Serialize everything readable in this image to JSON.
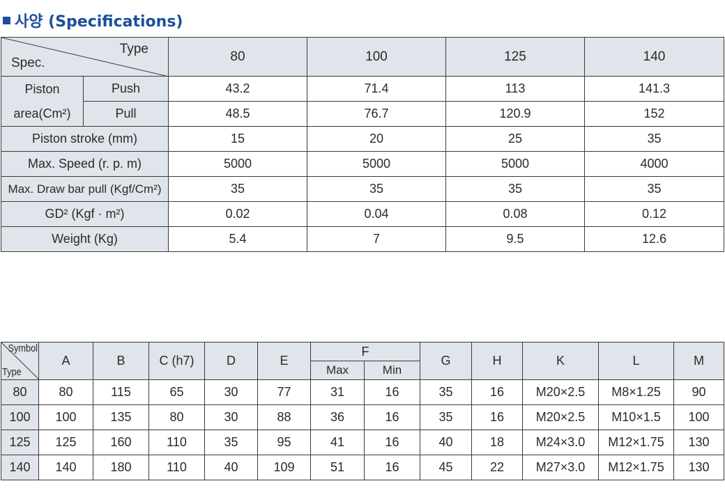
{
  "title": "사양 (Specifications)",
  "spec_table": {
    "corner": {
      "type": "Type",
      "spec": "Spec."
    },
    "types": [
      "80",
      "100",
      "125",
      "140"
    ],
    "piston_area": {
      "label_top": "Piston",
      "label_bottom": "area(Cm²)",
      "push": {
        "label": "Push",
        "values": [
          "43.2",
          "71.4",
          "113",
          "141.3"
        ]
      },
      "pull": {
        "label": "Pull",
        "values": [
          "48.5",
          "76.7",
          "120.9",
          "152"
        ]
      }
    },
    "rows": [
      {
        "label": "Piston stroke (mm)",
        "values": [
          "15",
          "20",
          "25",
          "35"
        ]
      },
      {
        "label": "Max. Speed (r. p. m)",
        "values": [
          "5000",
          "5000",
          "5000",
          "4000"
        ]
      },
      {
        "label": "Max. Draw bar pull (Kgf/Cm²)",
        "values": [
          "35",
          "35",
          "35",
          "35"
        ]
      },
      {
        "label": "GD² (Kgf · m²)",
        "values": [
          "0.02",
          "0.04",
          "0.08",
          "0.12"
        ]
      },
      {
        "label": "Weight (Kg)",
        "values": [
          "5.4",
          "7",
          "9.5",
          "12.6"
        ]
      }
    ]
  },
  "dim_table": {
    "corner": {
      "symbol": "Symbol",
      "type": "Type"
    },
    "headers": {
      "A": "A",
      "B": "B",
      "C": "C (h7)",
      "D": "D",
      "E": "E",
      "F": "F",
      "F_max": "Max",
      "F_min": "Min",
      "G": "G",
      "H": "H",
      "K": "K",
      "L": "L",
      "M": "M"
    },
    "rows": [
      [
        "80",
        "80",
        "115",
        "65",
        "30",
        "77",
        "31",
        "16",
        "35",
        "16",
        "M20×2.5",
        "M8×1.25",
        "90"
      ],
      [
        "100",
        "100",
        "135",
        "80",
        "30",
        "88",
        "36",
        "16",
        "35",
        "16",
        "M20×2.5",
        "M10×1.5",
        "100"
      ],
      [
        "125",
        "125",
        "160",
        "110",
        "35",
        "95",
        "41",
        "16",
        "40",
        "18",
        "M24×3.0",
        "M12×1.75",
        "130"
      ],
      [
        "140",
        "140",
        "180",
        "110",
        "40",
        "109",
        "51",
        "16",
        "45",
        "22",
        "M27×3.0",
        "M12×1.75",
        "130"
      ]
    ]
  }
}
